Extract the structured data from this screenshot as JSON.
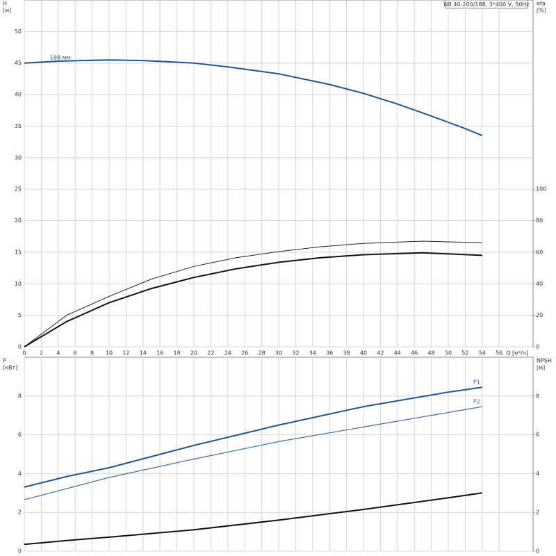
{
  "title": "NB 40-200/188, 3*400 V, 50Hz",
  "chart_data": [
    {
      "type": "line",
      "xlabel": "Q [м³/ч]",
      "ylabel": "H",
      "yunit": "[м]",
      "y2label": "eta",
      "y2unit": "[%]",
      "xlim": [
        0,
        60
      ],
      "xticks": [
        0,
        2,
        4,
        6,
        8,
        10,
        12,
        14,
        16,
        18,
        20,
        22,
        24,
        26,
        28,
        30,
        32,
        34,
        36,
        38,
        40,
        42,
        44,
        46,
        48,
        50,
        52,
        54,
        56
      ],
      "xtick_labels": true,
      "ylim": [
        0,
        55
      ],
      "yticks": [
        0,
        5,
        10,
        15,
        20,
        25,
        30,
        35,
        40,
        45,
        50
      ],
      "y2lim": [
        0,
        220
      ],
      "y2ticks": [
        0,
        20,
        40,
        60,
        80,
        100
      ],
      "grid": true,
      "series": [
        {
          "name": "188 мм",
          "name_position": "start",
          "color": "#1f5591",
          "linewidth": 2,
          "axis": "y",
          "x": [
            0,
            4,
            10,
            14,
            20,
            24,
            30,
            36,
            40,
            44,
            48,
            50,
            52,
            54
          ],
          "values": [
            45,
            45.3,
            45.5,
            45.4,
            45,
            44.4,
            43.3,
            41.6,
            40.2,
            38.5,
            36.6,
            35.6,
            34.6,
            33.5
          ]
        },
        {
          "color": "#222222",
          "linewidth": 1,
          "axis": "y2",
          "x": [
            0,
            5,
            10,
            15,
            20,
            25,
            30,
            35,
            40,
            47,
            54
          ],
          "values": [
            0,
            20,
            32,
            43,
            51,
            56.5,
            60.4,
            63.5,
            65.6,
            67,
            66
          ]
        },
        {
          "color": "#111111",
          "linewidth": 2,
          "axis": "y2",
          "x": [
            0,
            5,
            10,
            15,
            20,
            25,
            30,
            35,
            40,
            47,
            54
          ],
          "values": [
            0,
            16,
            28,
            37,
            44,
            49.5,
            53.6,
            56.5,
            58.4,
            59.6,
            58
          ]
        }
      ]
    },
    {
      "type": "line",
      "ylabel": "P",
      "yunit": "[кВт]",
      "y2label": "NPSH",
      "y2unit": "[м]",
      "xlim": [
        0,
        60
      ],
      "xticks": [
        0,
        2,
        4,
        6,
        8,
        10,
        12,
        14,
        16,
        18,
        20,
        22,
        24,
        26,
        28,
        30,
        32,
        34,
        36,
        38,
        40,
        42,
        44,
        46,
        48,
        50,
        52,
        54,
        56
      ],
      "xtick_labels": false,
      "ylim": [
        0,
        10
      ],
      "yticks": [
        0,
        2,
        4,
        6,
        8
      ],
      "y2lim": [
        0,
        10
      ],
      "y2ticks": [
        0,
        2,
        4,
        6,
        8
      ],
      "grid": true,
      "series": [
        {
          "name": "P1",
          "name_position": "end",
          "color": "#1f5591",
          "linewidth": 2,
          "axis": "y",
          "x": [
            0,
            5,
            10,
            20,
            30,
            40,
            50,
            54
          ],
          "values": [
            3.3,
            3.85,
            4.3,
            5.45,
            6.5,
            7.45,
            8.2,
            8.45
          ]
        },
        {
          "name": "P2",
          "name_position": "end",
          "color": "#3a6ea8",
          "linewidth": 1.2,
          "axis": "y",
          "x": [
            0,
            10,
            20,
            30,
            40,
            50,
            54
          ],
          "values": [
            2.65,
            3.8,
            4.75,
            5.65,
            6.4,
            7.15,
            7.45
          ]
        },
        {
          "color": "#111111",
          "linewidth": 2,
          "axis": "y2",
          "x": [
            0,
            5,
            10,
            20,
            30,
            40,
            50,
            54
          ],
          "values": [
            0.35,
            0.55,
            0.72,
            1.1,
            1.6,
            2.15,
            2.75,
            3.0
          ]
        }
      ]
    }
  ]
}
